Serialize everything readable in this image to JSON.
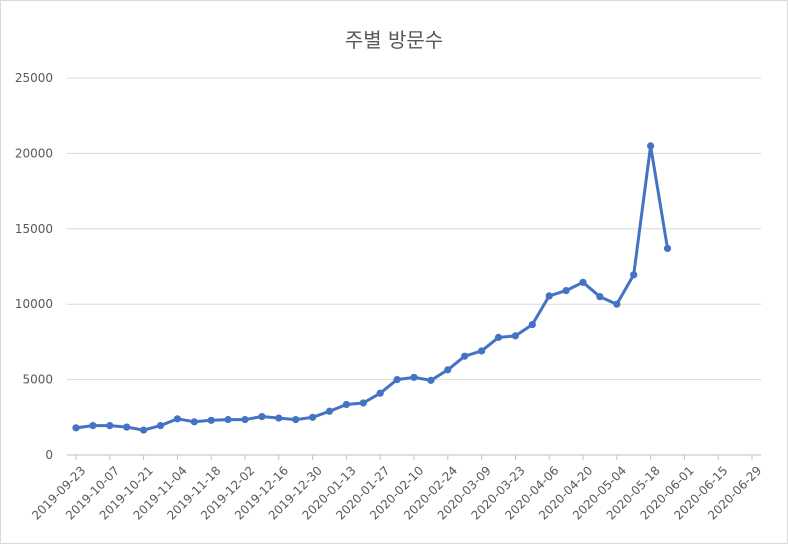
{
  "chart_data": {
    "type": "line",
    "title": "주별 방문수",
    "xlabel": "",
    "ylabel": "",
    "ylim": [
      0,
      25000
    ],
    "y_ticks": [
      0,
      5000,
      10000,
      15000,
      20000,
      25000
    ],
    "grid": true,
    "legend": "none",
    "x_ticks": [
      "2019-09-23",
      "2019-10-07",
      "2019-10-21",
      "2019-11-04",
      "2019-11-18",
      "2019-12-02",
      "2019-12-16",
      "2019-12-30",
      "2020-01-13",
      "2020-01-27",
      "2020-02-10",
      "2020-02-24",
      "2020-03-09",
      "2020-03-23",
      "2020-04-06",
      "2020-04-20",
      "2020-05-04",
      "2020-05-18",
      "2020-06-01",
      "2020-06-15",
      "2020-06-29"
    ],
    "x_range": [
      "2019-09-23",
      "2020-06-29"
    ],
    "line_color": "#4472c4",
    "series": [
      {
        "x": [
          "2019-09-23",
          "2019-09-30",
          "2019-10-07",
          "2019-10-14",
          "2019-10-21",
          "2019-10-28",
          "2019-11-04",
          "2019-11-11",
          "2019-11-18",
          "2019-11-25",
          "2019-12-02",
          "2019-12-09",
          "2019-12-16",
          "2019-12-23",
          "2019-12-30",
          "2020-01-06",
          "2020-01-13",
          "2020-01-20",
          "2020-01-27",
          "2020-02-03",
          "2020-02-10",
          "2020-02-17",
          "2020-02-24",
          "2020-03-02",
          "2020-03-09",
          "2020-03-16",
          "2020-03-23",
          "2020-03-30",
          "2020-04-06",
          "2020-04-13",
          "2020-04-20",
          "2020-04-27",
          "2020-05-04",
          "2020-05-11",
          "2020-05-18",
          "2020-05-25"
        ],
        "values": [
          1800,
          1950,
          1950,
          1850,
          1650,
          1950,
          2400,
          2200,
          2300,
          2350,
          2350,
          2550,
          2450,
          2350,
          2500,
          2900,
          3350,
          3450,
          4100,
          5000,
          5150,
          4950,
          5650,
          6550,
          6900,
          7800,
          7900,
          8650,
          10550,
          10900,
          11450,
          10500,
          10000,
          11950,
          20500,
          13700
        ]
      }
    ]
  }
}
